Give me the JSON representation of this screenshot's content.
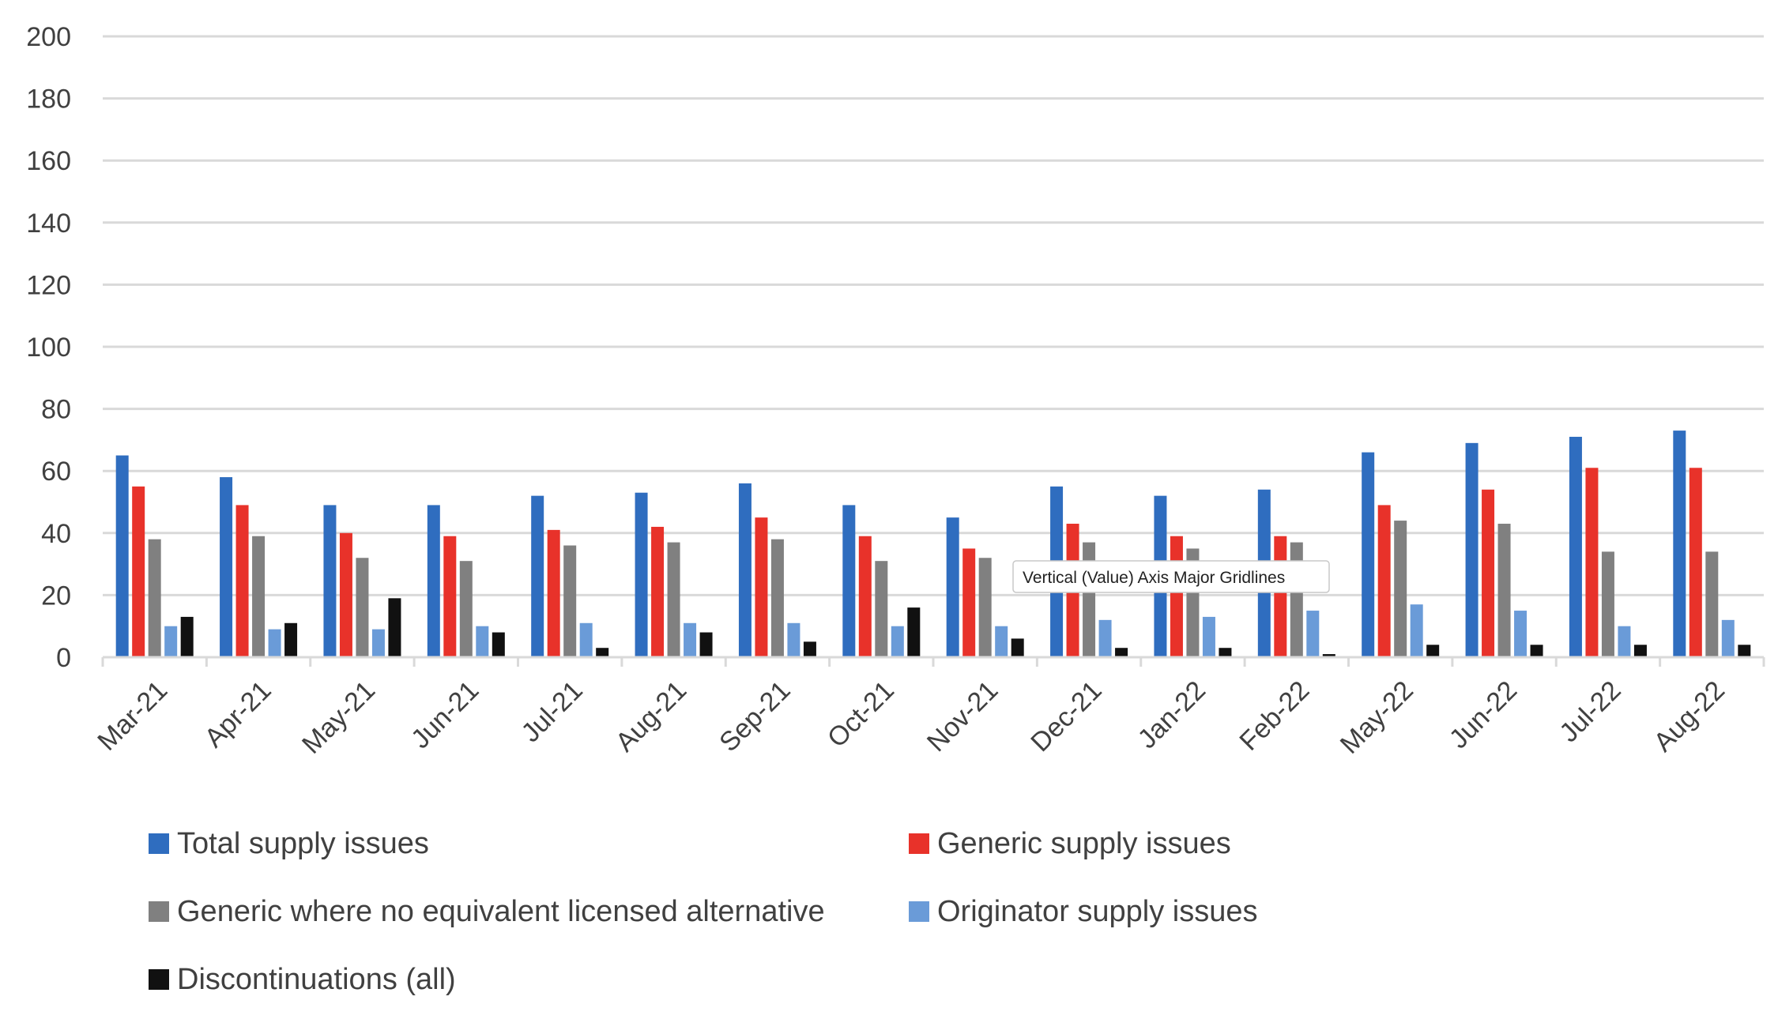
{
  "chart_data": {
    "type": "bar",
    "categories": [
      "Mar-21",
      "Apr-21",
      "May-21",
      "Jun-21",
      "Jul-21",
      "Aug-21",
      "Sep-21",
      "Oct-21",
      "Nov-21",
      "Dec-21",
      "Jan-22",
      "Feb-22",
      "May-22",
      "Jun-22",
      "Jul-22",
      "Aug-22"
    ],
    "series": [
      {
        "name": "Total supply issues",
        "color": "#2F6DBF",
        "values": [
          65,
          58,
          49,
          49,
          52,
          53,
          56,
          49,
          45,
          55,
          52,
          54,
          66,
          69,
          71,
          73
        ]
      },
      {
        "name": "Generic supply issues",
        "color": "#E8322A",
        "values": [
          55,
          49,
          40,
          39,
          41,
          42,
          45,
          39,
          35,
          43,
          39,
          39,
          49,
          54,
          61,
          61
        ]
      },
      {
        "name": "Generic where no equivalent licensed alternative",
        "color": "#808080",
        "values": [
          38,
          39,
          32,
          31,
          36,
          37,
          38,
          31,
          32,
          37,
          35,
          37,
          44,
          43,
          34,
          34
        ]
      },
      {
        "name": "Originator supply issues",
        "color": "#6A9BD8",
        "values": [
          10,
          9,
          9,
          10,
          11,
          11,
          11,
          10,
          10,
          12,
          13,
          15,
          17,
          15,
          10,
          12
        ]
      },
      {
        "name": "Discontinuations (all)",
        "color": "#111111",
        "values": [
          13,
          11,
          19,
          8,
          3,
          8,
          5,
          16,
          6,
          3,
          3,
          1,
          4,
          4,
          4,
          4
        ]
      }
    ],
    "yticks": [
      "0",
      "20",
      "40",
      "60",
      "80",
      "100",
      "120",
      "140",
      "160",
      "180",
      "200"
    ],
    "ylim": [
      0,
      200
    ],
    "grid": true,
    "legend_position": "bottom",
    "title": "",
    "xlabel": "",
    "ylabel": ""
  },
  "tooltip": {
    "text": "Vertical (Value) Axis Major Gridlines"
  }
}
